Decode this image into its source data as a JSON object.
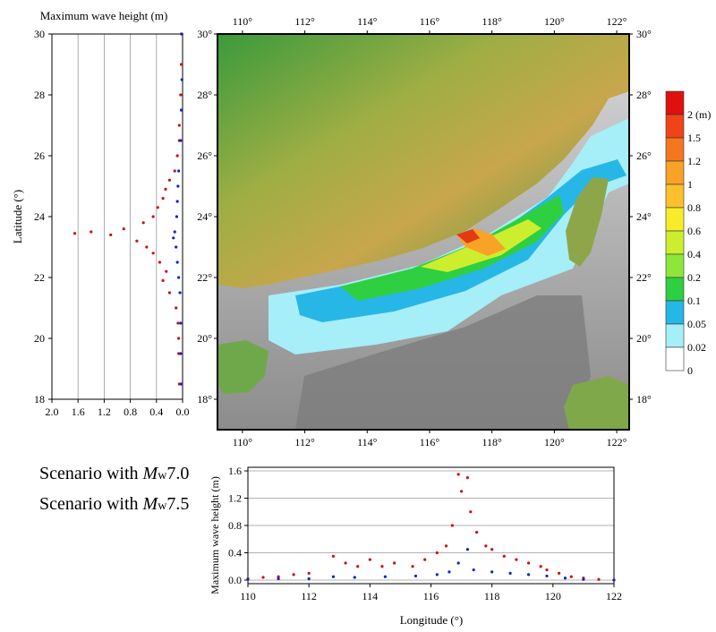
{
  "left_panel": {
    "title": "Maximum wave height (m)",
    "ylabel": "Latitude (°)",
    "x_ticks": [
      "2.0",
      "1.6",
      "1.2",
      "0.8",
      "0.4",
      "0.0"
    ],
    "y_ticks": [
      "18",
      "20",
      "22",
      "24",
      "26",
      "28",
      "30"
    ]
  },
  "map": {
    "top_ticks": [
      "110°",
      "112°",
      "114°",
      "116°",
      "118°",
      "120°",
      "122°"
    ],
    "bottom_ticks": [
      "110°",
      "112°",
      "114°",
      "116°",
      "118°",
      "120°",
      "122°"
    ],
    "left_ticks": [
      "18°",
      "20°",
      "22°",
      "24°",
      "26°",
      "28°",
      "30°"
    ],
    "right_ticks": [
      "18°",
      "20°",
      "22°",
      "24°",
      "26°",
      "28°",
      "30°"
    ],
    "colors": {
      "land_low": "#2f8f3a",
      "land_high": "#c9a64a",
      "sea_floor": "#8a8a8a",
      "shelf": "#bfbfbf"
    }
  },
  "colorbar": {
    "labels": [
      "2 (m)",
      "1.5",
      "1.2",
      "1",
      "0.8",
      "0.6",
      "0.4",
      "0.2",
      "0.1",
      "0.05",
      "0.02",
      "0"
    ],
    "colors": [
      "#e01010",
      "#ee4418",
      "#f4771e",
      "#f8a326",
      "#fcc02c",
      "#f8ec2a",
      "#cdee2e",
      "#8ee63a",
      "#2fcf42",
      "#26b7e6",
      "#a6eef8",
      "#ffffff"
    ]
  },
  "legend": {
    "s1_prefix": "Scenario with ",
    "s1_mag": "M",
    "s1_sub": "w",
    "s1_val": "7.0",
    "s2_prefix": "Scenario with ",
    "s2_mag": "M",
    "s2_sub": "w",
    "s2_val": "7.5"
  },
  "bottom_panel": {
    "xlabel": "Longitude (°)",
    "ylabel": "Maximum wave height (m)",
    "x_ticks": [
      "110",
      "112",
      "114",
      "116",
      "118",
      "120",
      "122"
    ],
    "y_ticks": [
      "0.0",
      "0.4",
      "0.8",
      "1.2",
      "1.6"
    ]
  },
  "chart_data": [
    {
      "type": "scatter",
      "panel": "latitude profile",
      "xlim": [
        2.0,
        0.0
      ],
      "ylim": [
        18,
        30
      ],
      "x_reversed": true,
      "grid": true,
      "series": [
        {
          "color": "#cc1111",
          "points": [
            [
              0.05,
              18.5
            ],
            [
              0.06,
              19.5
            ],
            [
              0.06,
              20.0
            ],
            [
              0.07,
              20.5
            ],
            [
              0.1,
              21.0
            ],
            [
              0.2,
              21.5
            ],
            [
              0.3,
              21.9
            ],
            [
              0.25,
              22.2
            ],
            [
              0.35,
              22.5
            ],
            [
              0.45,
              22.8
            ],
            [
              0.55,
              23.0
            ],
            [
              0.7,
              23.2
            ],
            [
              1.1,
              23.4
            ],
            [
              1.4,
              23.5
            ],
            [
              1.65,
              23.45
            ],
            [
              0.9,
              23.6
            ],
            [
              0.6,
              23.8
            ],
            [
              0.45,
              24.0
            ],
            [
              0.38,
              24.3
            ],
            [
              0.3,
              24.6
            ],
            [
              0.26,
              24.9
            ],
            [
              0.2,
              25.2
            ],
            [
              0.12,
              25.5
            ],
            [
              0.08,
              26.0
            ],
            [
              0.05,
              26.5
            ],
            [
              0.05,
              27.0
            ],
            [
              0.03,
              28.0
            ],
            [
              0.02,
              29.0
            ],
            [
              0.02,
              30.0
            ]
          ]
        },
        {
          "color": "#1122cc",
          "points": [
            [
              0.02,
              18.5
            ],
            [
              0.03,
              19.5
            ],
            [
              0.03,
              20.5
            ],
            [
              0.04,
              21.5
            ],
            [
              0.06,
              22.0
            ],
            [
              0.08,
              22.5
            ],
            [
              0.1,
              23.0
            ],
            [
              0.14,
              23.3
            ],
            [
              0.12,
              23.5
            ],
            [
              0.09,
              24.0
            ],
            [
              0.08,
              24.5
            ],
            [
              0.07,
              25.0
            ],
            [
              0.06,
              25.5
            ],
            [
              0.03,
              26.5
            ],
            [
              0.02,
              27.5
            ],
            [
              0.01,
              28.5
            ],
            [
              0.01,
              30.0
            ]
          ]
        }
      ]
    },
    {
      "type": "scatter",
      "panel": "longitude profile",
      "xlim": [
        110,
        122
      ],
      "ylim": [
        0,
        1.6
      ],
      "grid": true,
      "series": [
        {
          "color": "#cc1111",
          "points": [
            [
              110.0,
              0.02
            ],
            [
              110.5,
              0.04
            ],
            [
              111.0,
              0.05
            ],
            [
              111.5,
              0.08
            ],
            [
              112.0,
              0.1
            ],
            [
              112.8,
              0.35
            ],
            [
              113.2,
              0.25
            ],
            [
              113.6,
              0.2
            ],
            [
              114.0,
              0.3
            ],
            [
              114.4,
              0.2
            ],
            [
              114.8,
              0.25
            ],
            [
              115.4,
              0.2
            ],
            [
              115.8,
              0.3
            ],
            [
              116.2,
              0.4
            ],
            [
              116.5,
              0.5
            ],
            [
              116.7,
              0.8
            ],
            [
              116.9,
              1.55
            ],
            [
              117.0,
              1.3
            ],
            [
              117.2,
              1.5
            ],
            [
              117.3,
              1.0
            ],
            [
              117.5,
              0.7
            ],
            [
              117.8,
              0.5
            ],
            [
              118.0,
              0.45
            ],
            [
              118.4,
              0.35
            ],
            [
              118.8,
              0.3
            ],
            [
              119.2,
              0.25
            ],
            [
              119.6,
              0.2
            ],
            [
              119.8,
              0.15
            ],
            [
              120.2,
              0.1
            ],
            [
              120.6,
              0.05
            ],
            [
              121.0,
              0.03
            ],
            [
              121.5,
              0.01
            ],
            [
              122.0,
              0.0
            ]
          ]
        },
        {
          "color": "#1122cc",
          "points": [
            [
              110.0,
              0.01
            ],
            [
              111.0,
              0.02
            ],
            [
              112.0,
              0.02
            ],
            [
              112.8,
              0.05
            ],
            [
              113.5,
              0.04
            ],
            [
              114.5,
              0.05
            ],
            [
              115.5,
              0.06
            ],
            [
              116.2,
              0.08
            ],
            [
              116.6,
              0.12
            ],
            [
              116.9,
              0.25
            ],
            [
              117.2,
              0.45
            ],
            [
              117.4,
              0.15
            ],
            [
              118.0,
              0.12
            ],
            [
              118.6,
              0.1
            ],
            [
              119.2,
              0.08
            ],
            [
              119.8,
              0.06
            ],
            [
              120.4,
              0.03
            ],
            [
              121.0,
              0.01
            ],
            [
              122.0,
              0.0
            ]
          ]
        }
      ]
    }
  ]
}
